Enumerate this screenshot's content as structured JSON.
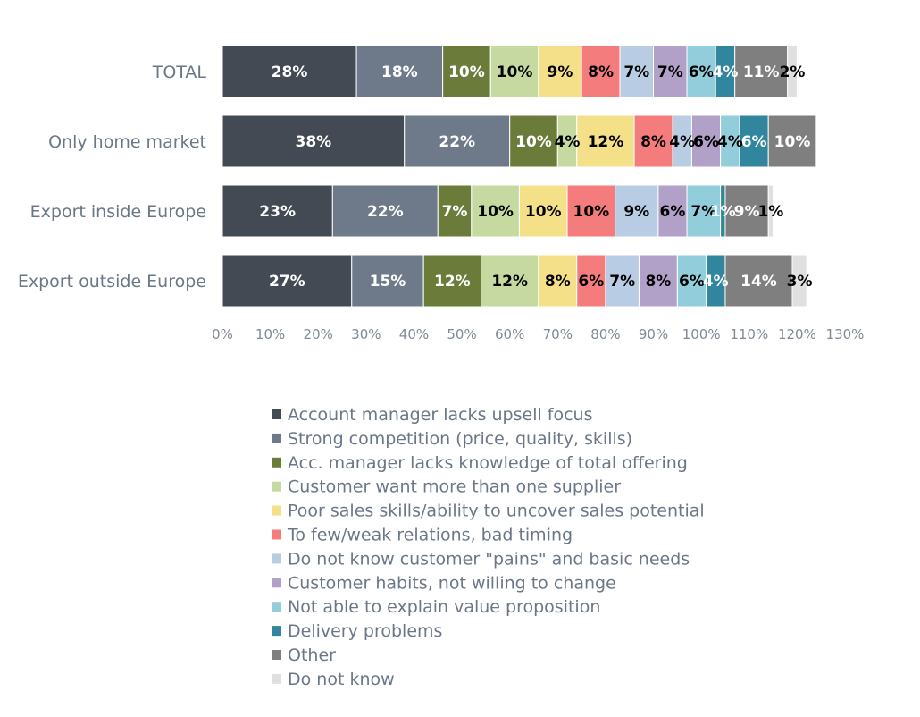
{
  "chart_data": {
    "type": "bar",
    "orientation": "horizontal",
    "stacked": true,
    "categories": [
      "TOTAL",
      "Only home market",
      "Export inside Europe",
      "Export outside Europe"
    ],
    "xlim": [
      0,
      130
    ],
    "x_ticks": [
      "0%",
      "10%",
      "20%",
      "30%",
      "40%",
      "50%",
      "60%",
      "70%",
      "80%",
      "90%",
      "100%",
      "110%",
      "120%",
      "130%"
    ],
    "legend_position": "bottom",
    "grid": false,
    "series": [
      {
        "name": "Account manager lacks upsell focus",
        "color": "#434a53",
        "values": [
          28,
          38,
          23,
          27
        ],
        "labels": [
          "28%",
          "38%",
          "23%",
          "27%"
        ]
      },
      {
        "name": "Strong competition (price, quality, skills)",
        "color": "#6e7a89",
        "values": [
          18,
          22,
          22,
          15
        ],
        "labels": [
          "18%",
          "22%",
          "22%",
          "15%"
        ]
      },
      {
        "name": "Acc. manager lacks knowledge of total offering",
        "color": "#6b7c3a",
        "values": [
          10,
          10,
          7,
          12
        ],
        "labels": [
          "10%",
          "10%",
          "7%",
          "12%"
        ]
      },
      {
        "name": "Customer want more than one supplier",
        "color": "#c6d9a0",
        "values": [
          10,
          4,
          10,
          12
        ],
        "labels": [
          "10%",
          "4%",
          "10%",
          "12%"
        ]
      },
      {
        "name": "Poor sales skills/ability to uncover sales potential",
        "color": "#f5e08a",
        "values": [
          9,
          12,
          10,
          8
        ],
        "labels": [
          "9%",
          "12%",
          "10%",
          "8%"
        ]
      },
      {
        "name": "To few/weak relations, bad timing",
        "color": "#f47c7c",
        "values": [
          8,
          8,
          10,
          6
        ],
        "labels": [
          "8%",
          "8%",
          "10%",
          "6%"
        ]
      },
      {
        "name": "Do not know customer \"pains\" and basic needs",
        "color": "#b8cce4",
        "values": [
          7,
          4,
          9,
          7
        ],
        "labels": [
          "7%",
          "4%",
          "9%",
          "7%"
        ]
      },
      {
        "name": "Customer habits, not willing to change",
        "color": "#b1a0c7",
        "values": [
          7,
          6,
          6,
          8
        ],
        "labels": [
          "7%",
          "6%",
          "6%",
          "8%"
        ]
      },
      {
        "name": "Not able to explain value proposition",
        "color": "#92cddc",
        "values": [
          6,
          4,
          7,
          6
        ],
        "labels": [
          "6%",
          "4%",
          "7%",
          "6%"
        ]
      },
      {
        "name": "Delivery problems",
        "color": "#31859c",
        "values": [
          4,
          6,
          1,
          4
        ],
        "labels": [
          "4%",
          "6%",
          "1%",
          "4%"
        ]
      },
      {
        "name": "Other",
        "color": "#7f7f7f",
        "values": [
          11,
          10,
          9,
          14
        ],
        "labels": [
          "11%",
          "10%",
          "9%",
          "14%"
        ]
      },
      {
        "name": "Do not know",
        "color": "#e0e0e0",
        "values": [
          2,
          0,
          1,
          3
        ],
        "labels": [
          "2%",
          "",
          "1%",
          "3%"
        ]
      }
    ],
    "label_colors": {
      "dark_bg": "#ffffff",
      "light_bg": "#000000"
    },
    "dark_segments": [
      0,
      1,
      2,
      9,
      10
    ]
  }
}
